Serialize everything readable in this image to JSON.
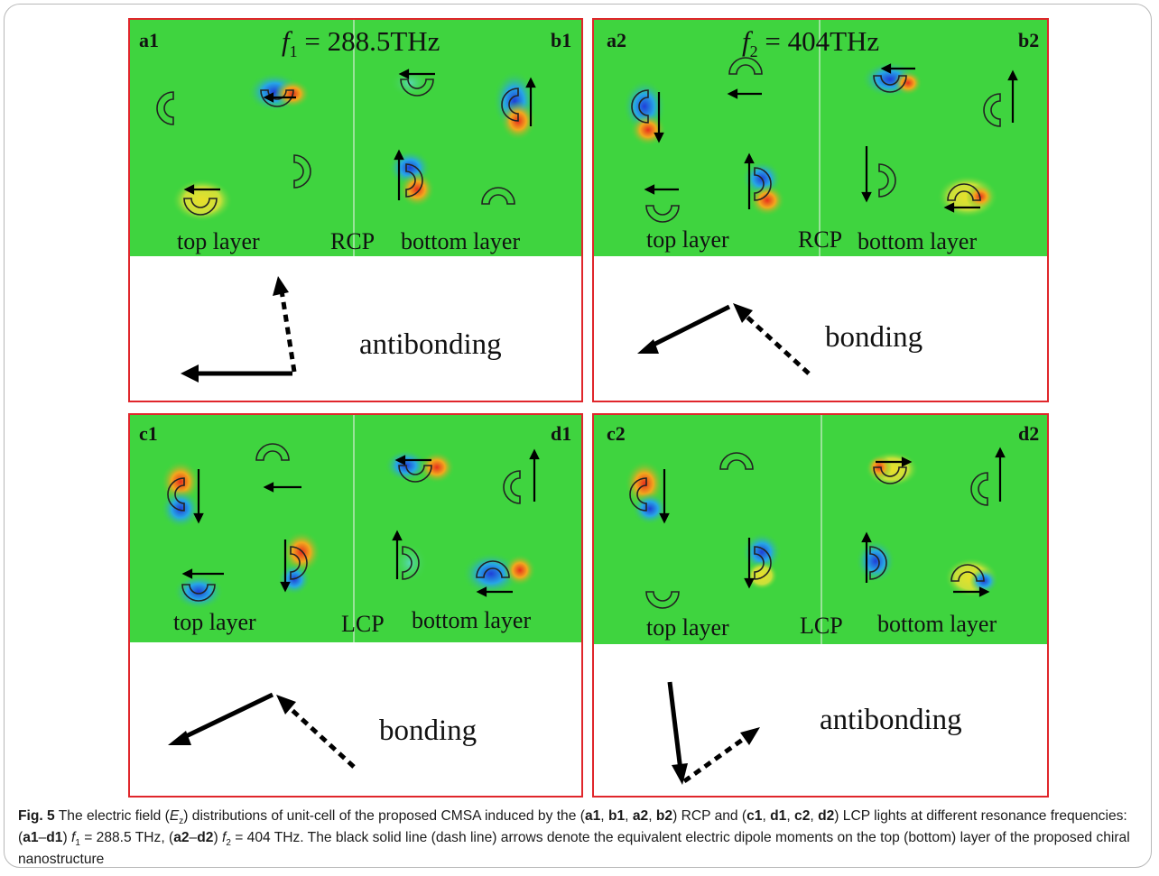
{
  "panels": [
    {
      "id": "top-left",
      "left_label": "a1",
      "right_label": "b1",
      "freq_var": "f",
      "freq_sub": "1",
      "freq_value": " = 288.5THz",
      "left_layer": "top layer",
      "polarization": "RCP",
      "right_layer": "bottom layer",
      "mode": "antibonding"
    },
    {
      "id": "top-right",
      "left_label": "a2",
      "right_label": "b2",
      "freq_var": "f",
      "freq_sub": "2",
      "freq_value": " = 404THz",
      "left_layer": "top layer",
      "polarization": "RCP",
      "right_layer": "bottom layer",
      "mode": "bonding"
    },
    {
      "id": "bottom-left",
      "left_label": "c1",
      "right_label": "d1",
      "freq_var": "",
      "freq_sub": "",
      "freq_value": "",
      "left_layer": "top layer",
      "polarization": "LCP",
      "right_layer": "bottom layer",
      "mode": "bonding"
    },
    {
      "id": "bottom-right",
      "left_label": "c2",
      "right_label": "d2",
      "freq_var": "",
      "freq_sub": "",
      "freq_value": "",
      "left_layer": "top layer",
      "polarization": "LCP",
      "right_layer": "bottom layer",
      "mode": "antibonding"
    }
  ],
  "caption": {
    "fig_label": "Fig. 5",
    "t1": " The electric field (",
    "field_var": "E",
    "field_sub": "z",
    "t2": ") distributions of unit-cell of the proposed CMSA induced by the (",
    "g1a": "a1",
    "g1b": "b1",
    "g1c": "a2",
    "g1d": "b2",
    "t3": ") RCP and (",
    "g2a": "c1",
    "g2b": "d1",
    "g2c": "c2",
    "g2d": "d2",
    "t4": ") LCP lights at different resonance frequencies: (",
    "r1a": "a1",
    "r1b": "d1",
    "t5": ") ",
    "f1_var": "f",
    "f1_sub": "1",
    "f1_val": " = 288.5 THz, (",
    "r2a": "a2",
    "r2b": "d2",
    "t6": ") ",
    "f2_var": "f",
    "f2_sub": "2",
    "f2_val": " = 404 THz. The black solid line (dash line) arrows denote the equivalent electric dipole moments on the top (bottom) layer of the proposed chiral nanostructure",
    "sep_comma": ", ",
    "sep_dash": "–"
  },
  "colors": {
    "frame_red": "#e0262b",
    "field_green": "#3fd43f",
    "negative": "#2255dd",
    "positive": "#e8381e",
    "neutral_yellow": "#e6e42a"
  }
}
